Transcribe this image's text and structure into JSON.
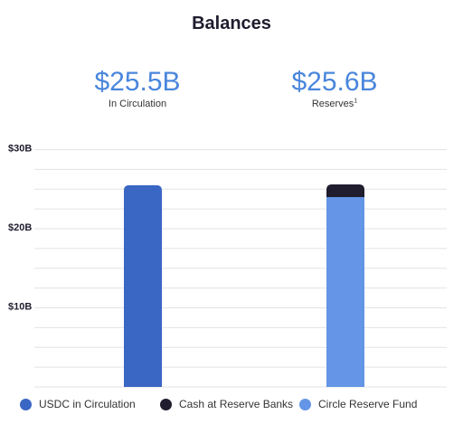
{
  "title": "Balances",
  "stats": {
    "circulation": {
      "value": "$25.5B",
      "caption": "In Circulation"
    },
    "reserves": {
      "value": "$25.6B",
      "caption": "Reserves",
      "footnote": "1"
    }
  },
  "colors": {
    "usdc": "#3a66c4",
    "cash": "#1f1d2e",
    "fund": "#6495e6",
    "stat_value": "#4a86dc",
    "grid": "#e3e3e3"
  },
  "chart_data": {
    "type": "bar",
    "stacked": true,
    "categories": [
      "In Circulation",
      "Reserves"
    ],
    "series": [
      {
        "name": "USDC in Circulation",
        "values": [
          25.5,
          0
        ],
        "color": "#3a66c4"
      },
      {
        "name": "Circle Reserve Fund",
        "values": [
          0,
          24.0
        ],
        "color": "#6495e6"
      },
      {
        "name": "Cash at Reserve Banks",
        "values": [
          0,
          1.6
        ],
        "color": "#1f1d2e"
      }
    ],
    "ylim": [
      0,
      30
    ],
    "yticks": [
      {
        "value": 10,
        "label": "$10B"
      },
      {
        "value": 20,
        "label": "$20B"
      },
      {
        "value": 30,
        "label": "$30B"
      }
    ],
    "grid": true,
    "legend_position": "bottom"
  },
  "legend": [
    {
      "label": "USDC in Circulation",
      "color": "#3a66c4"
    },
    {
      "label": "Cash at Reserve Banks",
      "color": "#1f1d2e"
    },
    {
      "label": "Circle Reserve Fund",
      "color": "#6495e6"
    }
  ]
}
